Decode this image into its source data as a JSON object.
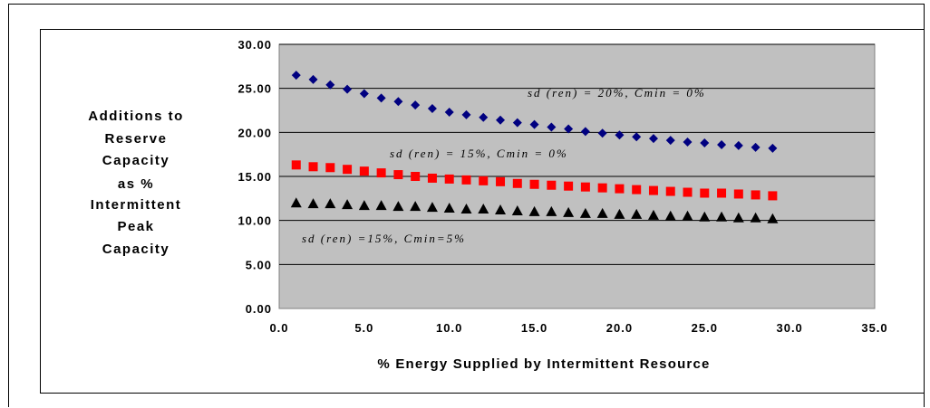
{
  "chart_data": {
    "type": "scatter",
    "ylabel_lines": [
      "Additions to",
      "Reserve",
      "Capacity",
      "as %",
      "Intermittent",
      "Peak",
      "Capacity"
    ],
    "xlabel": "% Energy Supplied by Intermittent Resource",
    "xlim": [
      0,
      35
    ],
    "ylim": [
      0,
      30
    ],
    "x_ticks": [
      "0.0",
      "5.0",
      "10.0",
      "15.0",
      "20.0",
      "25.0",
      "30.0",
      "35.0"
    ],
    "y_ticks": [
      "0.00",
      "5.00",
      "10.00",
      "15.00",
      "20.00",
      "25.00",
      "30.00"
    ],
    "grid": true,
    "plot_background": "#c0c0c0",
    "x": [
      1,
      2,
      3,
      4,
      5,
      6,
      7,
      8,
      9,
      10,
      11,
      12,
      13,
      14,
      15,
      16,
      17,
      18,
      19,
      20,
      21,
      22,
      23,
      24,
      25,
      26,
      27,
      28,
      29
    ],
    "series": [
      {
        "label": "sd (ren) = 20%, Cmin = 0%",
        "marker": "diamond",
        "color": "#000080",
        "values": [
          26.5,
          26.0,
          25.4,
          24.9,
          24.4,
          23.9,
          23.5,
          23.1,
          22.7,
          22.3,
          22.0,
          21.7,
          21.4,
          21.1,
          20.9,
          20.6,
          20.4,
          20.1,
          19.9,
          19.7,
          19.5,
          19.3,
          19.1,
          18.9,
          18.8,
          18.6,
          18.5,
          18.3,
          18.2
        ]
      },
      {
        "label": "sd (ren) = 15%, Cmin = 0%",
        "marker": "square",
        "color": "#ff0000",
        "values": [
          16.3,
          16.1,
          16.0,
          15.8,
          15.6,
          15.4,
          15.2,
          15.0,
          14.8,
          14.7,
          14.6,
          14.5,
          14.4,
          14.2,
          14.1,
          14.0,
          13.9,
          13.8,
          13.7,
          13.6,
          13.5,
          13.4,
          13.3,
          13.2,
          13.1,
          13.1,
          13.0,
          12.9,
          12.8
        ]
      },
      {
        "label": "sd (ren) =15%, Cmin=5%",
        "marker": "triangle",
        "color": "#000000",
        "values": [
          12.0,
          11.9,
          11.9,
          11.8,
          11.7,
          11.7,
          11.6,
          11.6,
          11.5,
          11.4,
          11.3,
          11.3,
          11.2,
          11.1,
          11.0,
          11.0,
          10.9,
          10.8,
          10.8,
          10.7,
          10.7,
          10.6,
          10.5,
          10.5,
          10.4,
          10.4,
          10.3,
          10.3,
          10.2
        ]
      }
    ]
  }
}
